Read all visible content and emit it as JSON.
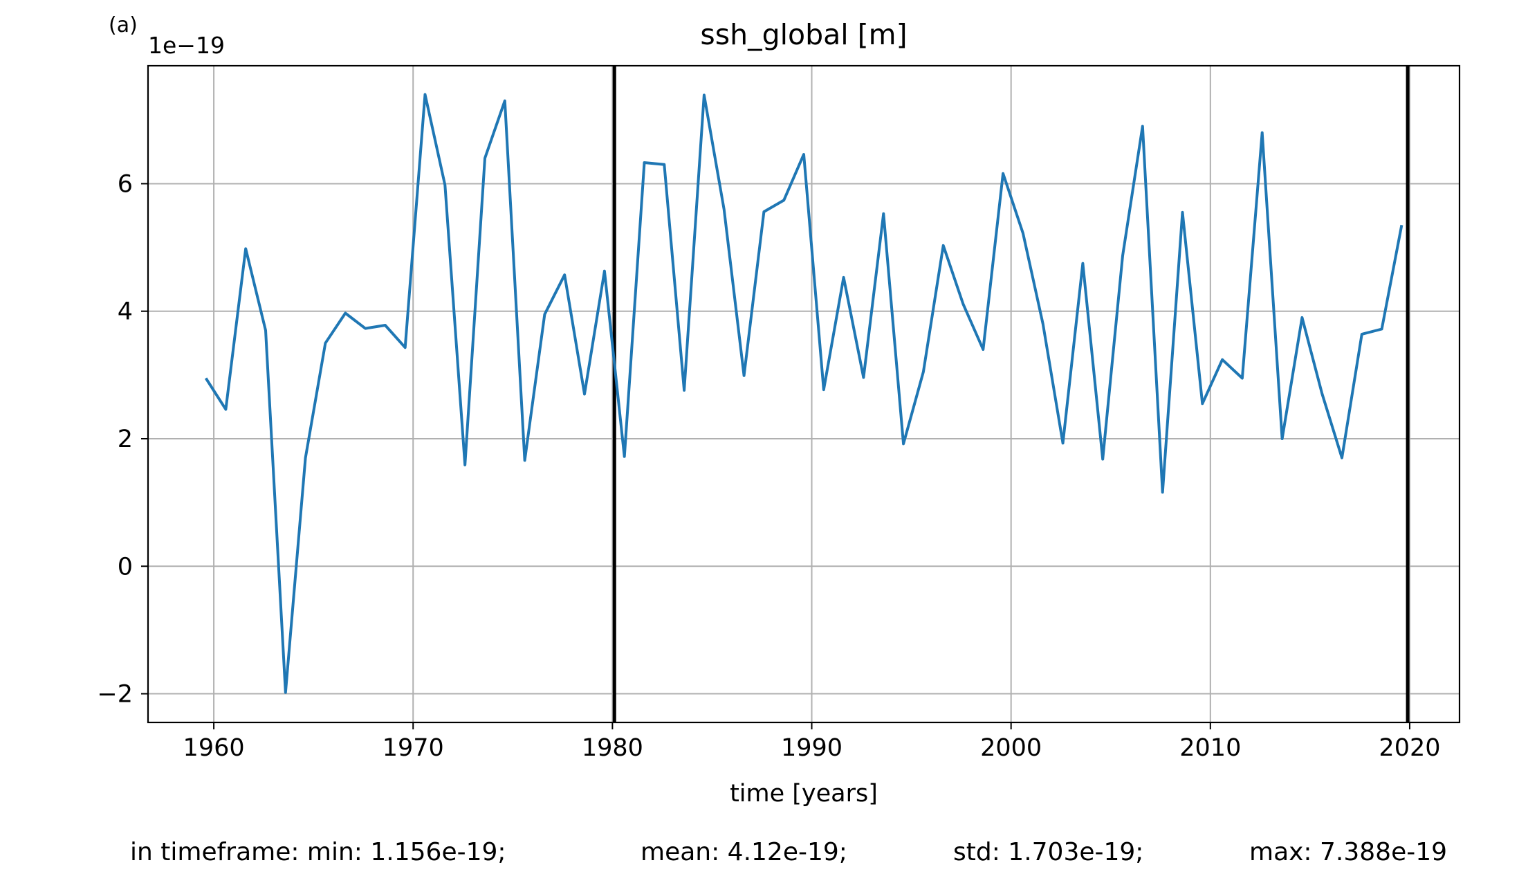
{
  "panel_label": "(a)",
  "chart_data": {
    "type": "line",
    "title": "ssh_global [m]",
    "xlabel": "time [years]",
    "ylabel": "",
    "offset_text": "1e−19",
    "xlim": [
      1956.7,
      2022.5
    ],
    "ylim": [
      -2.45,
      7.85
    ],
    "xticks": [
      1960,
      1970,
      1980,
      1990,
      2000,
      2010,
      2020
    ],
    "yticks": [
      -2,
      0,
      2,
      4,
      6
    ],
    "ytick_labels": [
      "−2",
      "0",
      "2",
      "4",
      "6"
    ],
    "grid": true,
    "vertical_markers": [
      1980.1,
      2019.9
    ],
    "series": [
      {
        "color": "#1f77b4",
        "x": [
          1959.6,
          1960.6,
          1961.6,
          1962.6,
          1963.6,
          1964.6,
          1965.6,
          1966.6,
          1967.6,
          1968.6,
          1969.6,
          1970.6,
          1971.6,
          1972.6,
          1973.6,
          1974.6,
          1975.6,
          1976.6,
          1977.6,
          1978.6,
          1979.6,
          1980.6,
          1981.6,
          1982.6,
          1983.6,
          1984.6,
          1985.6,
          1986.6,
          1987.6,
          1988.6,
          1989.6,
          1990.6,
          1991.6,
          1992.6,
          1993.6,
          1994.6,
          1995.6,
          1996.6,
          1997.6,
          1998.6,
          1999.6,
          2000.6,
          2001.6,
          2002.6,
          2003.6,
          2004.6,
          2005.6,
          2006.6,
          2007.6,
          2008.6,
          2009.6,
          2010.6,
          2011.6,
          2012.6,
          2013.6,
          2014.6,
          2015.6,
          2016.6,
          2017.6,
          2018.6,
          2019.6
        ],
        "y": [
          2.95,
          2.46,
          4.98,
          3.7,
          -1.98,
          1.7,
          3.5,
          3.97,
          3.73,
          3.78,
          3.43,
          7.4,
          5.98,
          1.59,
          6.4,
          7.3,
          1.66,
          3.95,
          4.57,
          2.7,
          4.63,
          1.72,
          6.33,
          6.3,
          2.76,
          7.39,
          5.6,
          2.99,
          5.56,
          5.74,
          6.46,
          2.77,
          4.53,
          2.96,
          5.53,
          1.92,
          3.05,
          5.03,
          4.11,
          3.4,
          6.16,
          5.22,
          3.8,
          1.93,
          4.75,
          1.68,
          4.87,
          6.9,
          1.16,
          5.55,
          2.55,
          3.24,
          2.95,
          6.8,
          2.0,
          3.9,
          2.71,
          1.7,
          3.64,
          3.72,
          5.35
        ]
      }
    ]
  },
  "stats": {
    "min": "in timeframe: min: 1.156e-19;",
    "mean": "mean: 4.12e-19;",
    "std": "std: 1.703e-19;",
    "max": "max: 7.388e-19"
  }
}
